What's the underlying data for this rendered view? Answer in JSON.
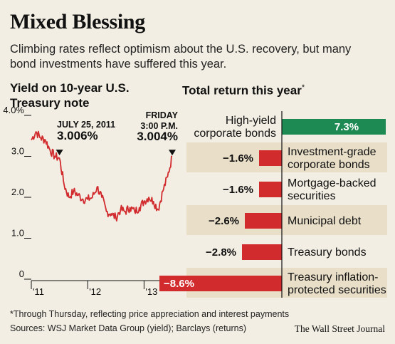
{
  "title": "Mixed Blessing",
  "subtitle": "Climbing rates reflect optimism about the U.S. recovery, but many bond investments have suffered this year.",
  "footnote": "*Through Thursday, reflecting price appreciation and interest payments",
  "sources": "Sources: WSJ Market Data Group (yield); Barclays (returns)",
  "credit": "The Wall Street Journal",
  "colors": {
    "background": "#f2eee3",
    "series_red": "#d12b2e",
    "positive_green": "#1e8a53",
    "band_tan": "#e9dfc9",
    "axis": "#111111"
  },
  "chart_data": [
    {
      "type": "line",
      "title": "Yield on 10-year U.S. Treasury note",
      "ylim": [
        0,
        4.0
      ],
      "y_ticks": [
        "4.0%",
        "3.0",
        "2.0",
        "1.0",
        "0"
      ],
      "y_tick_values": [
        4.0,
        3.0,
        2.0,
        1.0,
        0
      ],
      "x_ticks": [
        "'11",
        "'12",
        "'13"
      ],
      "grid": false,
      "series": [
        {
          "x": [
            "2011-01",
            "2011-02",
            "2011-03",
            "2011-04",
            "2011-05",
            "2011-06",
            "2011-07",
            "2011-08",
            "2011-09",
            "2011-10",
            "2011-11",
            "2011-12",
            "2012-01",
            "2012-02",
            "2012-03",
            "2012-04",
            "2012-05",
            "2012-06",
            "2012-07",
            "2012-08",
            "2012-09",
            "2012-10",
            "2012-11",
            "2012-12",
            "2013-01",
            "2013-02",
            "2013-03",
            "2013-04",
            "2013-05",
            "2013-06",
            "2013-07"
          ],
          "values": [
            3.4,
            3.6,
            3.45,
            3.4,
            3.15,
            3.0,
            2.95,
            2.3,
            2.0,
            2.15,
            2.05,
            1.95,
            1.95,
            2.0,
            2.25,
            2.0,
            1.65,
            1.6,
            1.5,
            1.7,
            1.65,
            1.75,
            1.65,
            1.75,
            1.9,
            2.0,
            1.9,
            1.7,
            2.15,
            2.5,
            3.0
          ]
        }
      ],
      "annotations": [
        {
          "label": "JULY 25, 2011",
          "value": "3.006%",
          "x": "2011-07",
          "y": 3.006
        },
        {
          "label_line1": "FRIDAY",
          "label_line2": "3:00 P.M.",
          "value": "3.004%",
          "x": "2013-07",
          "y": 3.004
        }
      ]
    },
    {
      "type": "bar",
      "title": "Total return this year",
      "title_marker": "*",
      "orientation": "horizontal",
      "categories": [
        "High-yield corporate bonds",
        "Investment-grade corporate bonds",
        "Mortgage-backed securities",
        "Municipal debt",
        "Treasury bonds",
        "Treasury inflation-protected securities"
      ],
      "category_lines": [
        [
          "High-yield",
          "corporate bonds"
        ],
        [
          "Investment-grade",
          "corporate bonds"
        ],
        [
          "Mortgage-backed",
          "securities"
        ],
        [
          "Municipal debt"
        ],
        [
          "Treasury bonds"
        ],
        [
          "Treasury inflation-",
          "protected securities"
        ]
      ],
      "values": [
        7.3,
        -1.6,
        -1.6,
        -2.6,
        -2.8,
        -8.6
      ],
      "value_labels": [
        "7.3%",
        "−1.6%",
        "−1.6%",
        "−2.6%",
        "−2.8%",
        "−8.6%"
      ],
      "alternating_bands": true
    }
  ]
}
